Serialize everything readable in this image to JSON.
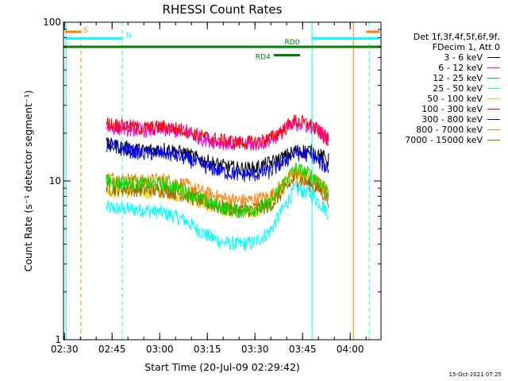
{
  "chart_data": {
    "type": "line",
    "title": "RHESSI Count Rates",
    "xlabel": "Start Time (20-Jul-09 02:29:42)",
    "ylabel": "Count Rate (s⁻¹ detector segment⁻¹)",
    "yscale": "log",
    "ylim": [
      1,
      100
    ],
    "xlim_minutes_from_start": [
      0,
      100
    ],
    "x_ticks": [
      "02:30",
      "02:45",
      "03:00",
      "03:15",
      "03:30",
      "03:45",
      "04:00"
    ],
    "y_ticks": [
      "1",
      "10",
      "100"
    ],
    "legend": {
      "position": "right",
      "header": [
        "Det 1f,3f,4f,5f,6f,9f,",
        "FDecim 1, Att 0"
      ]
    },
    "data_window_minutes": [
      13.5,
      83.5
    ],
    "series_x_minutes": [
      13.5,
      18,
      25,
      32,
      38,
      44,
      50,
      55,
      60,
      65,
      69,
      73,
      78,
      81,
      83.5
    ],
    "series": [
      {
        "name": "3 - 6 keV",
        "color": "#000000",
        "values": [
          17,
          16.5,
          15.5,
          16,
          15,
          13.5,
          12.5,
          12,
          12,
          13,
          14,
          15.5,
          15.5,
          14.5,
          13.5
        ]
      },
      {
        "name": "6 - 12 keV",
        "color": "#ff00ff",
        "values": [
          22,
          21.5,
          21,
          21,
          20.5,
          18.5,
          17.5,
          17,
          17,
          18,
          20.5,
          23,
          22,
          20.5,
          18.5
        ]
      },
      {
        "name": "12 - 25 keV",
        "color": "#00dd00",
        "values": [
          10,
          9.8,
          9.6,
          9.6,
          8.8,
          7.5,
          6.8,
          6.5,
          6.6,
          7.2,
          9.5,
          12,
          11,
          9.8,
          8.6
        ]
      },
      {
        "name": "25 - 50 keV",
        "color": "#00ffff",
        "values": [
          6.8,
          6.7,
          6.6,
          6.3,
          5.7,
          4.7,
          4.1,
          4,
          4.1,
          4.8,
          6.6,
          9,
          8.3,
          7.2,
          6.3
        ]
      },
      {
        "name": "50 - 100 keV",
        "color": "#ffcc00",
        "values": [
          8.8,
          8.7,
          8.6,
          8.6,
          8.1,
          7.2,
          6.6,
          6.4,
          6.4,
          7.1,
          8.9,
          11.5,
          10.5,
          9.4,
          8.1
        ]
      },
      {
        "name": "100 - 300 keV",
        "color": "#ff0000",
        "values": [
          23,
          22.5,
          21.5,
          22,
          21,
          19,
          18,
          17.5,
          17.5,
          18.5,
          21,
          24,
          22.5,
          20,
          18
        ]
      },
      {
        "name": "300 - 800 keV",
        "color": "#0000ff",
        "values": [
          17,
          16,
          15,
          15,
          14,
          12.5,
          11.5,
          11,
          11,
          11.5,
          13,
          15,
          14.5,
          13,
          12
        ]
      },
      {
        "name": "800 - 7000 keV",
        "color": "#ff8000",
        "values": [
          10.5,
          10.3,
          10,
          10.2,
          9.5,
          8.5,
          7.8,
          7.5,
          7.6,
          8,
          9.5,
          11.5,
          10.5,
          9.5,
          8.5
        ]
      },
      {
        "name": "7000 - 15000 keV",
        "color": "#996600",
        "values": [
          9,
          9,
          8.8,
          8.8,
          8.2,
          7.4,
          6.8,
          6.6,
          6.6,
          7,
          8.5,
          10.5,
          9.5,
          8.7,
          7.6
        ]
      }
    ],
    "state_bars": [
      {
        "label": "S",
        "color": "#ff8000",
        "y_value": 87,
        "x_minutes": [
          0.5,
          5.5
        ]
      },
      {
        "label": "S",
        "color": "#ff8000",
        "y_value": 87,
        "x_minutes": [
          95.3,
          99.5
        ]
      },
      {
        "label": "N",
        "color": "#00ffff",
        "y_value": 79,
        "x_minutes": [
          0.5,
          18.5
        ]
      },
      {
        "label": "N",
        "color": "#00ffff",
        "y_value": 79,
        "x_minutes": [
          78.3,
          99.5
        ]
      },
      {
        "label": "RD0",
        "color": "#008000",
        "y_value": 70,
        "x_minutes": [
          0,
          100
        ]
      },
      {
        "label": "RD4",
        "color": "#008000",
        "y_value": 62,
        "x_minutes": [
          66.2,
          74.5
        ]
      }
    ],
    "vertical_markers": [
      {
        "color": "#ff8000",
        "style": "dashed",
        "x_minutes": 5.5
      },
      {
        "color": "#00ffff",
        "style": "dashed",
        "x_minutes": 18.5
      },
      {
        "color": "#00ffff",
        "style": "solid",
        "x_minutes": 0.8
      },
      {
        "color": "#00ffff",
        "style": "solid",
        "x_minutes": 78.3
      },
      {
        "color": "#ff8000",
        "style": "solid",
        "x_minutes": 91.3
      },
      {
        "color": "#00ffff",
        "style": "dashed",
        "x_minutes": 96.3
      }
    ]
  },
  "footer": {
    "timestamp": "15-Oct-2021 07:25"
  }
}
